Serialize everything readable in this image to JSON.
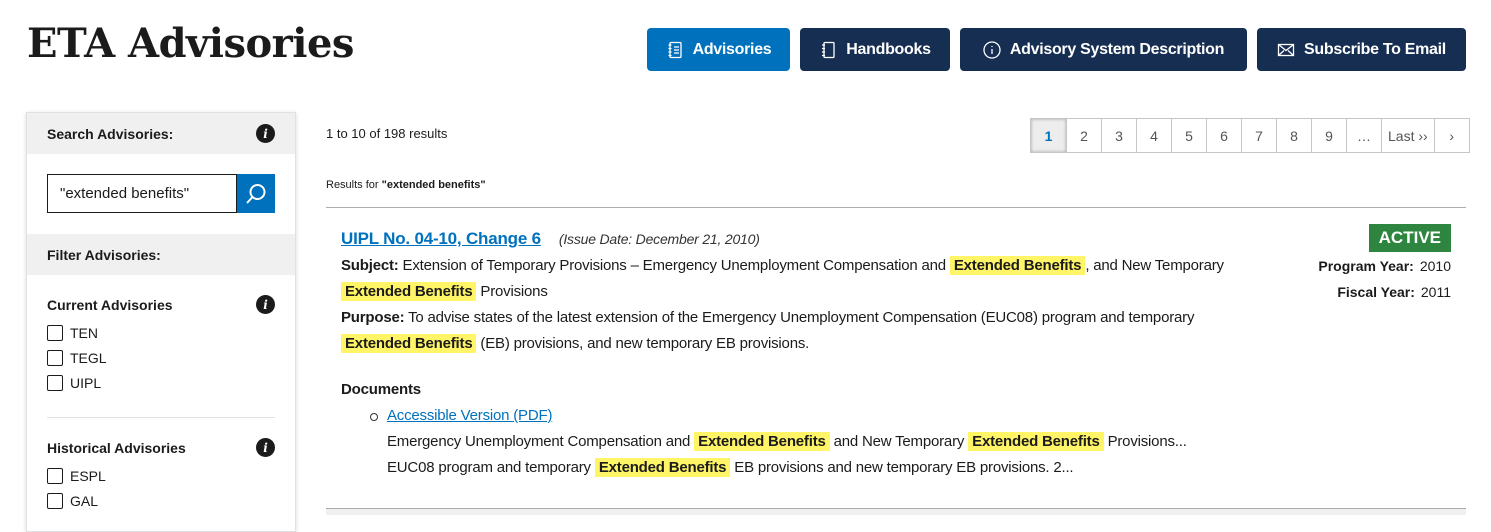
{
  "header": {
    "title": "ETA Advisories",
    "nav": [
      {
        "label": "Advisories",
        "icon": "notebook-icon",
        "active": true
      },
      {
        "label": "Handbooks",
        "icon": "book-icon"
      },
      {
        "label": "Advisory System Description",
        "icon": "info-icon"
      },
      {
        "label": "Subscribe To Email",
        "icon": "envelope-icon"
      }
    ]
  },
  "sidebar": {
    "search_label": "Search Advisories:",
    "search_value": "\"extended benefits\"",
    "filter_label": "Filter Advisories:",
    "current": {
      "label": "Current Advisories",
      "items": [
        "TEN",
        "TEGL",
        "UIPL"
      ]
    },
    "historical": {
      "label": "Historical Advisories",
      "items": [
        "ESPL",
        "GAL"
      ]
    }
  },
  "results": {
    "count": "1 to 10 of 198 results",
    "results_for_prefix": "Results for ",
    "query": "\"extended benefits\"",
    "pages": [
      "1",
      "2",
      "3",
      "4",
      "5",
      "6",
      "7",
      "8",
      "9",
      "…",
      "Last ››",
      "›"
    ],
    "current_page": "1",
    "items": [
      {
        "title": "UIPL No. 04-10, Change 6",
        "issue_date": "(Issue Date: December 21, 2010)",
        "status": "ACTIVE",
        "status_color": "#2e8540",
        "program_year_label": "Program Year:",
        "program_year": "2010",
        "fiscal_year_label": "Fiscal Year:",
        "fiscal_year": "2011",
        "subject_label": "Subject:",
        "subject": [
          {
            "t": " Extension of Temporary Provisions – Emergency Unemployment Compensation and "
          },
          {
            "t": "Extended  Benefits",
            "hl": true
          },
          {
            "t": ", and New Temporary "
          },
          {
            "t": "Extended  Benefits",
            "hl": true
          },
          {
            "t": " Provisions"
          }
        ],
        "purpose_label": "Purpose:",
        "purpose": [
          {
            "t": " To advise states of the latest extension of the Emergency Unemployment Compensation (EUC08) program and temporary "
          },
          {
            "t": "Extended  Benefits",
            "hl": true
          },
          {
            "t": " (EB) provisions, and new temporary EB provisions."
          }
        ],
        "documents_label": "Documents",
        "document_link": "Accessible Version (PDF)",
        "snippet1": [
          {
            "t": "Emergency Unemployment Compensation and "
          },
          {
            "t": "Extended  Benefits",
            "hl": true
          },
          {
            "t": " and New Temporary "
          },
          {
            "t": "Extended  Benefits",
            "hl": true
          },
          {
            "t": " Provisions..."
          }
        ],
        "snippet2": [
          {
            "t": "EUC08 program and temporary "
          },
          {
            "t": "Extended  Benefits",
            "hl": true
          },
          {
            "t": " EB provisions and new temporary EB provisions. 2..."
          }
        ]
      }
    ]
  }
}
